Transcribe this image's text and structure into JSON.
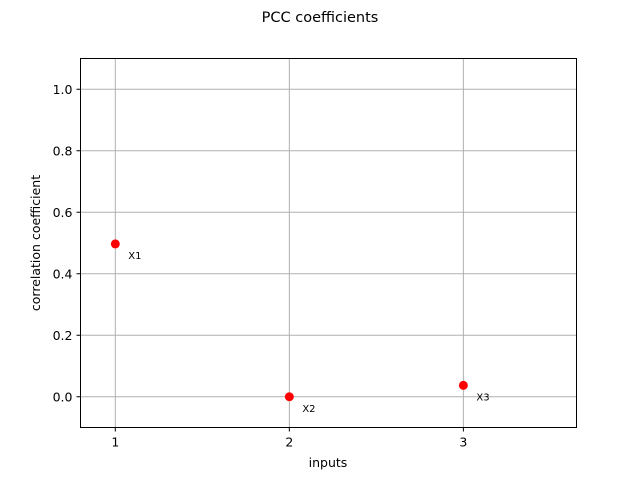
{
  "chart_data": {
    "type": "scatter",
    "title": "PCC coefficients",
    "xlabel": "inputs",
    "ylabel": "correlation coefficient",
    "xlim": [
      0.8,
      3.65
    ],
    "ylim": [
      -0.1,
      1.1
    ],
    "xticks": [
      1,
      2,
      3
    ],
    "yticks": [
      0.0,
      0.2,
      0.4,
      0.6,
      0.8,
      1.0
    ],
    "ytick_labels": [
      "0.0",
      "0.2",
      "0.4",
      "0.6",
      "0.8",
      "1.0"
    ],
    "grid": true,
    "marker_color": "#ff0000",
    "points": [
      {
        "x": 1,
        "y": 0.497,
        "label": "X1"
      },
      {
        "x": 2,
        "y": 0.0,
        "label": "X2"
      },
      {
        "x": 3,
        "y": 0.037,
        "label": "X3"
      }
    ]
  }
}
